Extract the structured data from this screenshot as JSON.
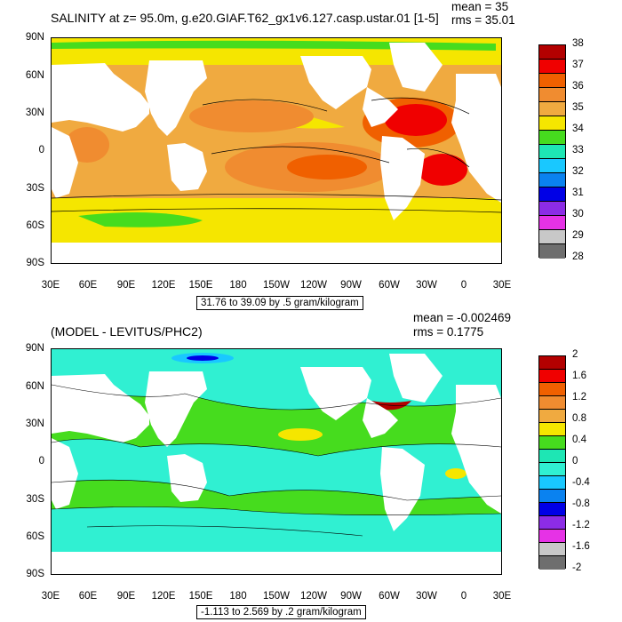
{
  "panel_top": {
    "title": "SALINITY at z=  95.0m, g.e20.GIAF.T62_gx1v6.127.casp.ustar.01 [1-5]",
    "mean": "mean = 35",
    "rms": "rms = 35.01",
    "range": "31.76 to 39.09 by .5 gram/kilogram",
    "colorbar": {
      "labels": [
        "38",
        "37",
        "36",
        "35",
        "34",
        "33",
        "32",
        "31",
        "30",
        "29",
        "28"
      ],
      "colors": [
        "#b30000",
        "#f00000",
        "#f06000",
        "#f08c30",
        "#f0aa40",
        "#f5e600",
        "#46dc1e",
        "#1ee6b4",
        "#19c8ff",
        "#0a82f0",
        "#0000e6",
        "#8c2ce6",
        "#e632e6",
        "#c8c8c8",
        "#6e6e6e"
      ]
    }
  },
  "panel_bottom": {
    "title": "(MODEL - LEVITUS/PHC2)",
    "mean": "mean = -0.002469",
    "rms": "rms = 0.1775",
    "range": "-1.113 to 2.569 by .2 gram/kilogram",
    "colorbar": {
      "labels": [
        "2",
        "1.6",
        "1.2",
        "0.8",
        "0.4",
        "0",
        "-0.4",
        "-0.8",
        "-1.2",
        "-1.6",
        "-2"
      ],
      "colors": [
        "#b30000",
        "#f00000",
        "#f06000",
        "#f08c30",
        "#f0aa40",
        "#f5e600",
        "#46dc1e",
        "#1ee6b4",
        "#30f0d2",
        "#19c8ff",
        "#0a82f0",
        "#0000e6",
        "#8c2ce6",
        "#e632e6",
        "#c8c8c8",
        "#6e6e6e"
      ]
    }
  },
  "axes": {
    "lat_labels": [
      "90N",
      "60N",
      "30N",
      "0",
      "30S",
      "60S",
      "90S"
    ],
    "lon_labels": [
      "30E",
      "60E",
      "90E",
      "120E",
      "150E",
      "180",
      "150W",
      "120W",
      "90W",
      "60W",
      "30W",
      "0",
      "30E"
    ]
  }
}
